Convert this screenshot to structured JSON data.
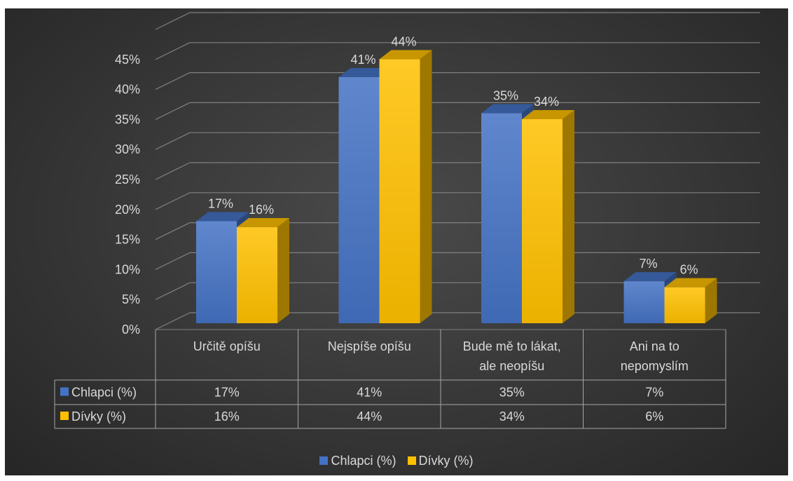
{
  "chart_data": {
    "type": "bar",
    "subtype": "3d-clustered-column-with-data-table",
    "categories": [
      "Určitě opíšu",
      "Nejspíše opíšu",
      "Bude mě to lákat, ale neopíšu",
      "Ani na to nepomyslím"
    ],
    "category_lines": [
      [
        "Určitě opíšu"
      ],
      [
        "Nejspíše opíšu"
      ],
      [
        "Bude mě to lákat,",
        "ale neopíšu"
      ],
      [
        "Ani na to",
        "nepomyslím"
      ]
    ],
    "series": [
      {
        "name": "Chlapci (%)",
        "values": [
          17,
          41,
          35,
          7
        ],
        "labels": [
          "17%",
          "41%",
          "35%",
          "7%"
        ],
        "color": "#4472c4"
      },
      {
        "name": "Dívky (%)",
        "values": [
          16,
          44,
          34,
          6
        ],
        "labels": [
          "16%",
          "44%",
          "34%",
          "6%"
        ],
        "color": "#ffc000"
      }
    ],
    "y_ticks": [
      "0%",
      "5%",
      "10%",
      "15%",
      "20%",
      "25%",
      "30%",
      "35%",
      "40%",
      "45%"
    ],
    "ylim": [
      0,
      50
    ],
    "grid": true,
    "legend": "bottom",
    "title": "",
    "xlabel": "",
    "ylabel": ""
  },
  "colors": {
    "background": "#3a3a3a",
    "gridline": "#808080",
    "text": "#d9d9d9",
    "chlapci": "#4472c4",
    "divky": "#ffc000"
  }
}
